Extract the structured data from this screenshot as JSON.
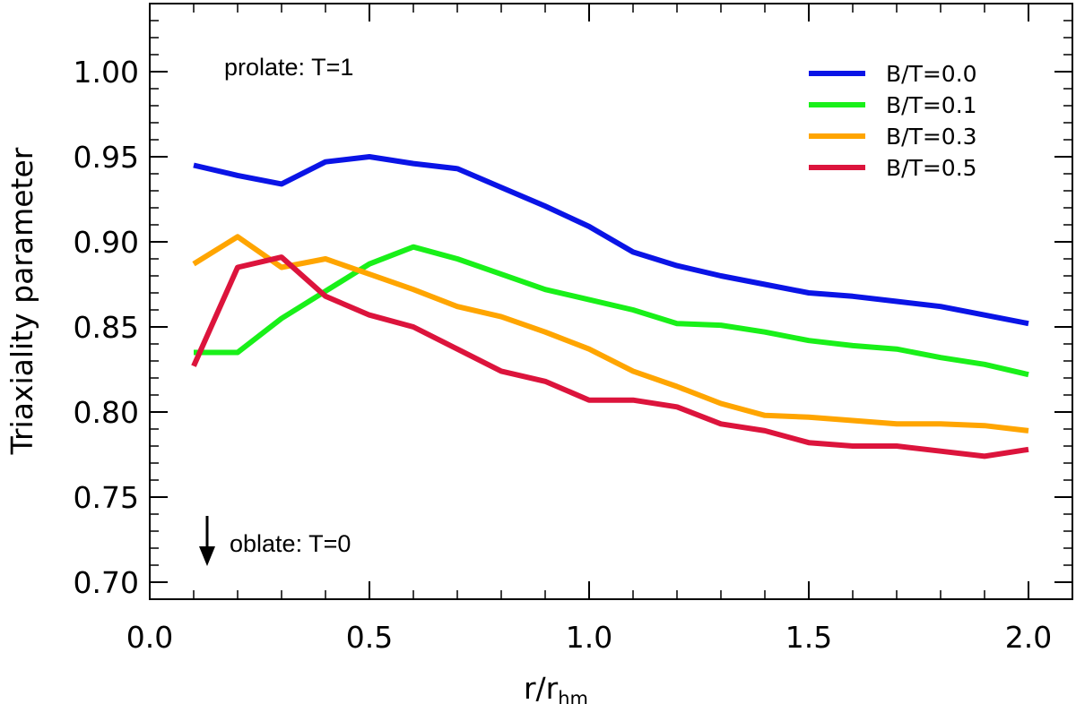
{
  "chart_data": {
    "type": "line",
    "title": "",
    "xlabel": "r/r",
    "xlabel_sub": "hm",
    "ylabel": "Triaxiality parameter",
    "xlim": [
      0.0,
      2.1
    ],
    "ylim": [
      0.69,
      1.04
    ],
    "x_ticks": [
      0.0,
      0.5,
      1.0,
      1.5,
      2.0
    ],
    "x_tick_labels": [
      "0.0",
      "0.5",
      "1.0",
      "1.5",
      "2.0"
    ],
    "x_minor_step": 0.1,
    "y_ticks": [
      0.7,
      0.75,
      0.8,
      0.85,
      0.9,
      0.95,
      1.0
    ],
    "y_tick_labels": [
      "0.70",
      "0.75",
      "0.80",
      "0.85",
      "0.90",
      "0.95",
      "1.00"
    ],
    "y_minor_step": 0.01,
    "grid": false,
    "legend_position": "top-right",
    "x": [
      0.1,
      0.2,
      0.3,
      0.4,
      0.5,
      0.6,
      0.7,
      0.8,
      0.9,
      1.0,
      1.1,
      1.2,
      1.3,
      1.4,
      1.5,
      1.6,
      1.7,
      1.8,
      1.9,
      2.0
    ],
    "series": [
      {
        "name": "B/T=0.0",
        "color": "#0a14e6",
        "values": [
          0.945,
          0.939,
          0.934,
          0.947,
          0.95,
          0.946,
          0.943,
          0.932,
          0.921,
          0.909,
          0.894,
          0.886,
          0.88,
          0.875,
          0.87,
          0.868,
          0.865,
          0.862,
          0.857,
          0.852
        ]
      },
      {
        "name": "B/T=0.1",
        "color": "#19f019",
        "values": [
          0.835,
          0.835,
          0.855,
          0.871,
          0.887,
          0.897,
          0.89,
          0.881,
          0.872,
          0.866,
          0.86,
          0.852,
          0.851,
          0.847,
          0.842,
          0.839,
          0.837,
          0.832,
          0.828,
          0.822
        ]
      },
      {
        "name": "B/T=0.3",
        "color": "#ffa500",
        "values": [
          0.887,
          0.903,
          0.885,
          0.89,
          0.881,
          0.872,
          0.862,
          0.856,
          0.847,
          0.837,
          0.824,
          0.815,
          0.805,
          0.798,
          0.797,
          0.795,
          0.793,
          0.793,
          0.792,
          0.789
        ]
      },
      {
        "name": "B/T=0.5",
        "color": "#dc143c",
        "values": [
          0.827,
          0.885,
          0.891,
          0.868,
          0.857,
          0.85,
          0.837,
          0.824,
          0.818,
          0.807,
          0.807,
          0.803,
          0.793,
          0.789,
          0.782,
          0.78,
          0.78,
          0.777,
          0.774,
          0.778
        ]
      }
    ],
    "annotations": {
      "prolate": "prolate: T=1",
      "oblate": "oblate: T=0"
    }
  }
}
